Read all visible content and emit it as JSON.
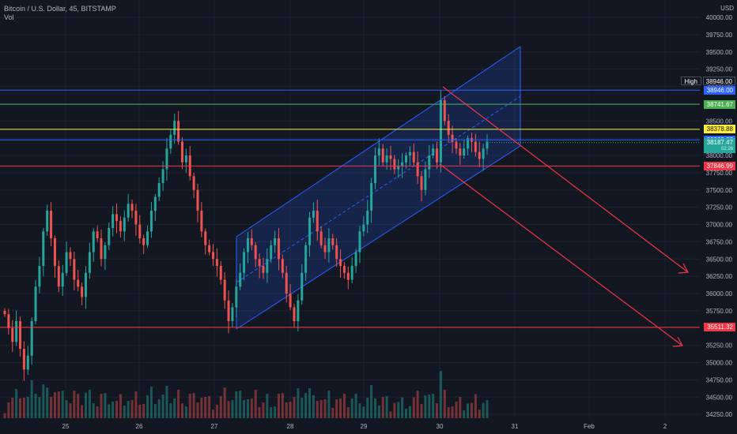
{
  "header": {
    "symbol_line": "Bitcoin / U.S. Dollar, 45, BITSTAMP",
    "volume_label": "Vol",
    "currency": "USD"
  },
  "price_axis": {
    "ticks": [
      "40000.00",
      "39750.00",
      "39500.00",
      "39250.00",
      "39000.00",
      "38750.00",
      "38500.00",
      "38250.00",
      "38000.00",
      "37750.00",
      "37500.00",
      "37250.00",
      "37000.00",
      "36750.00",
      "36500.00",
      "36250.00",
      "36000.00",
      "35750.00",
      "35500.00",
      "35250.00",
      "35000.00",
      "34750.00",
      "34500.00",
      "34250.00"
    ],
    "tick_values": [
      40000,
      39750,
      39500,
      39250,
      39000,
      38750,
      38500,
      38250,
      38000,
      37750,
      37500,
      37250,
      37000,
      36750,
      36500,
      36250,
      36000,
      35750,
      35500,
      35250,
      35000,
      34750,
      34500,
      34250
    ]
  },
  "time_axis": {
    "labels": [
      "25",
      "26",
      "27",
      "28",
      "29",
      "30",
      "31",
      "Feb",
      "2"
    ]
  },
  "levels": [
    {
      "price": 38946.0,
      "label": "38946.00",
      "color": "#2962ff",
      "text_color": "#ffffff"
    },
    {
      "price": 38741.67,
      "label": "38741.67",
      "color": "#4caf50",
      "text_color": "#ffffff"
    },
    {
      "price": 38378.88,
      "label": "38378.88",
      "color": "#ffeb3b",
      "text_color": "#131722"
    },
    {
      "price": 38225.27,
      "label": "38225.27",
      "color": "#2962ff",
      "text_color": "#ffffff"
    },
    {
      "price": 37846.99,
      "label": "37846.99",
      "color": "#f23645",
      "text_color": "#ffffff"
    },
    {
      "price": 35511.32,
      "label": "35511.32",
      "color": "#f23645",
      "text_color": "#ffffff"
    }
  ],
  "high_marker": {
    "tag": "High",
    "value": "38946.00"
  },
  "last_price": {
    "value": "38187.47",
    "countdown": "02:26",
    "color": "#26a69a"
  },
  "colors": {
    "background": "#131722",
    "up": "#26a69a",
    "down": "#ef5350",
    "channel": "#2962ff",
    "arrow": "#f23645"
  },
  "chart_data": {
    "type": "candlestick",
    "title": "Bitcoin / U.S. Dollar, 45, BITSTAMP",
    "ylim": [
      34200,
      40050
    ],
    "x_categories": [
      "25",
      "26",
      "27",
      "28",
      "29",
      "30",
      "31",
      "Feb",
      "2"
    ],
    "annotations": [
      {
        "type": "ascending-channel",
        "from_day": "27",
        "to_day": "31"
      },
      {
        "type": "arrow",
        "direction": "down",
        "color": "#f23645"
      },
      {
        "type": "arrow",
        "direction": "down",
        "color": "#f23645"
      }
    ],
    "close_series": [
      35700,
      35500,
      35300,
      35600,
      35200,
      34900,
      35100,
      35600,
      36100,
      36400,
      36900,
      37200,
      36800,
      36400,
      36100,
      36300,
      36600,
      36500,
      36200,
      36100,
      35950,
      36300,
      36600,
      36900,
      36800,
      36500,
      36700,
      36950,
      37150,
      37050,
      36900,
      37100,
      37300,
      37200,
      37000,
      36800,
      36700,
      36900,
      37200,
      37400,
      37600,
      37800,
      38100,
      38300,
      38500,
      38200,
      37900,
      38000,
      37700,
      37500,
      37200,
      36900,
      36700,
      36600,
      36500,
      36400,
      36200,
      35900,
      35600,
      35800,
      36100,
      36300,
      36600,
      36800,
      36700,
      36500,
      36400,
      36300,
      36500,
      36700,
      36800,
      36500,
      36300,
      36000,
      35800,
      35600,
      35900,
      36300,
      36700,
      37100,
      37200,
      36900,
      36700,
      36600,
      36800,
      36700,
      36500,
      36400,
      36300,
      36200,
      36400,
      36600,
      36900,
      37000,
      37200,
      37600,
      38000,
      38100,
      37900,
      38000,
      37950,
      37800,
      37850,
      37900,
      38000,
      38050,
      37900,
      37700,
      37500,
      37800,
      38000,
      38100,
      37900,
      38800,
      38500,
      38300,
      38200,
      38100,
      38000,
      38100,
      38250,
      38200,
      38050,
      37950,
      38100,
      38200
    ]
  }
}
